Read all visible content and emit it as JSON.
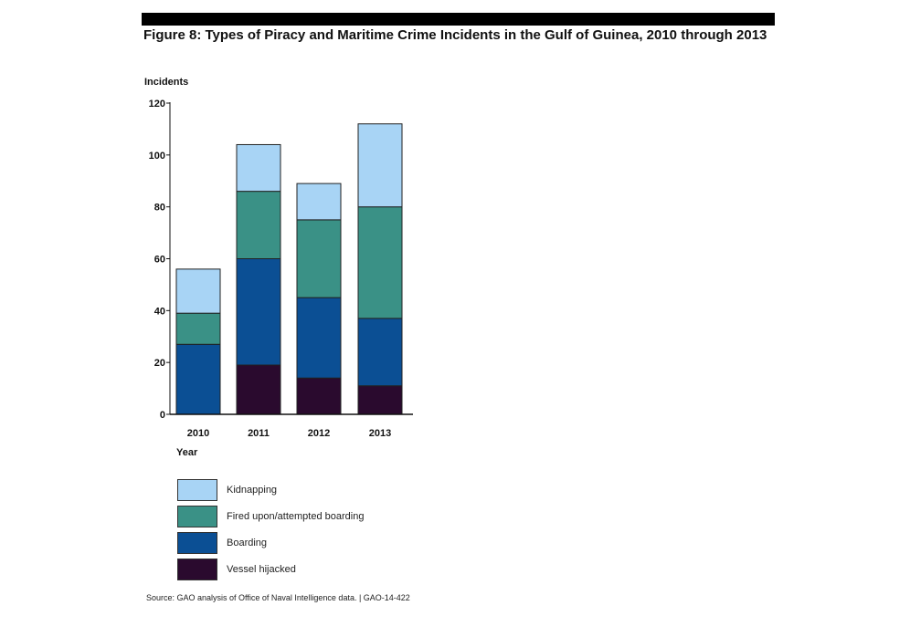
{
  "title": "Figure 8: Types of Piracy and Maritime Crime Incidents in the Gulf of Guinea, 2010 through 2013",
  "source": "Source: GAO analysis of Office of Naval Intelligence data. | GAO-14-422",
  "chart_data": {
    "type": "bar",
    "stacked": true,
    "ylabel": "Incidents",
    "xlabel": "Year",
    "ylim": [
      0,
      120
    ],
    "yticks": [
      0,
      20,
      40,
      60,
      80,
      100,
      120
    ],
    "categories": [
      "2010",
      "2011",
      "2012",
      "2013"
    ],
    "series": [
      {
        "name": "Vessel hijacked",
        "color": "#2a0a2e",
        "values": [
          0,
          19,
          14,
          11
        ]
      },
      {
        "name": "Boarding",
        "color": "#0b4f94",
        "values": [
          27,
          41,
          31,
          26
        ]
      },
      {
        "name": "Fired upon/attempted boarding",
        "color": "#3a9186",
        "values": [
          12,
          26,
          30,
          43
        ]
      },
      {
        "name": "Kidnapping",
        "color": "#a8d4f5",
        "values": [
          17,
          18,
          14,
          32
        ]
      }
    ],
    "legend_order": [
      3,
      2,
      1,
      0
    ],
    "grid": false,
    "legend_position": "bottom-left"
  }
}
